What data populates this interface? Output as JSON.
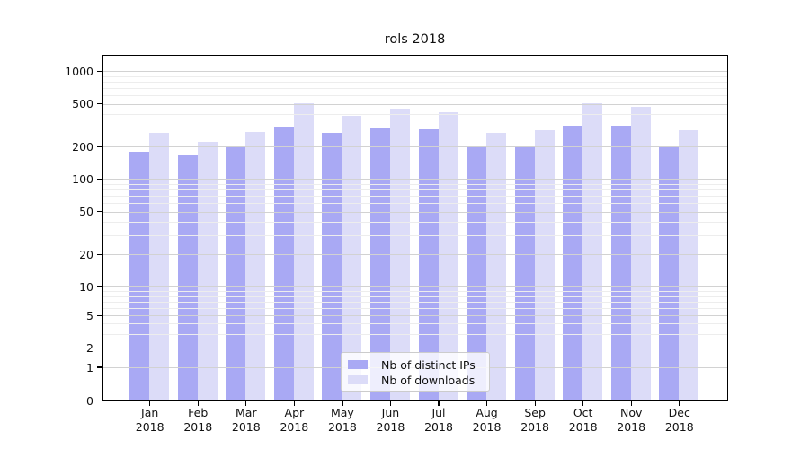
{
  "figure": {
    "title": "rols 2018"
  },
  "chart_data": {
    "type": "bar",
    "title": "rols 2018",
    "x_categories": [
      "Jan",
      "Feb",
      "Mar",
      "Apr",
      "May",
      "Jun",
      "Jul",
      "Aug",
      "Sep",
      "Oct",
      "Nov",
      "Dec"
    ],
    "x_year": "2018",
    "series": [
      {
        "name": "Nb of distinct IPs",
        "color": "#a9a9f4",
        "values": [
          180,
          165,
          200,
          310,
          270,
          300,
          290,
          198,
          203,
          313,
          312,
          202
        ]
      },
      {
        "name": "Nb of downloads",
        "color": "#dcdcf8",
        "values": [
          270,
          220,
          275,
          503,
          387,
          450,
          420,
          271,
          283,
          505,
          467,
          283
        ]
      }
    ],
    "yscale": "log above 1, linear 0-1",
    "y_ticks": [
      1000,
      500,
      200,
      100,
      50,
      20,
      10,
      5,
      2,
      1,
      0
    ],
    "ylim": [
      0,
      1400
    ],
    "grid": true,
    "legend_position": "bottom-center"
  },
  "colors": {
    "bar_dark": "#a9a9f4",
    "bar_light": "#dcdcf8",
    "grid_minor": "#ededed",
    "grid_major": "#d2d2d2",
    "frame": "#000000",
    "text": "#111111"
  }
}
